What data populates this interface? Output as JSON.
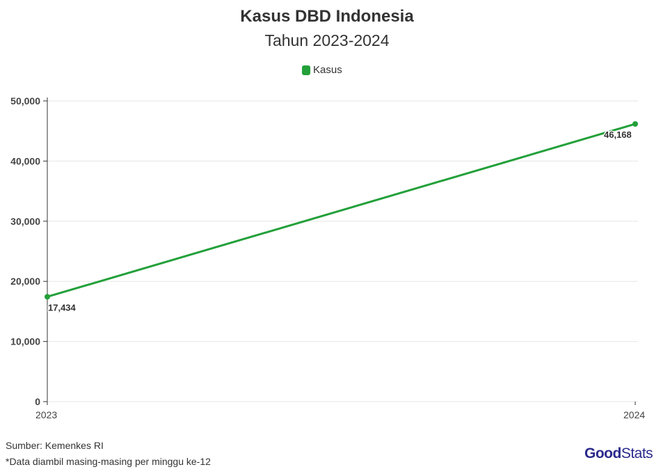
{
  "chart_data": {
    "type": "line",
    "title": "Kasus DBD Indonesia",
    "subtitle": "Tahun 2023-2024",
    "legend": [
      "Kasus"
    ],
    "legend_position": "top-center",
    "categories": [
      "2023",
      "2024"
    ],
    "series": [
      {
        "name": "Kasus",
        "values": [
          17434,
          46168
        ],
        "labels": [
          "17,434",
          "46,168"
        ]
      }
    ],
    "y_ticks": [
      0,
      10000,
      20000,
      30000,
      40000,
      50000
    ],
    "y_tick_labels": [
      "0",
      "10,000",
      "20,000",
      "30,000",
      "40,000",
      "50,000"
    ],
    "ylim": [
      0,
      50000
    ],
    "grid": true,
    "color": "#23a03a"
  },
  "footer": {
    "source": "Sumber: Kemenkes RI",
    "note": "*Data diambil masing-masing per minggu ke-12",
    "logo_bold": "Good",
    "logo_light": "Stats"
  }
}
